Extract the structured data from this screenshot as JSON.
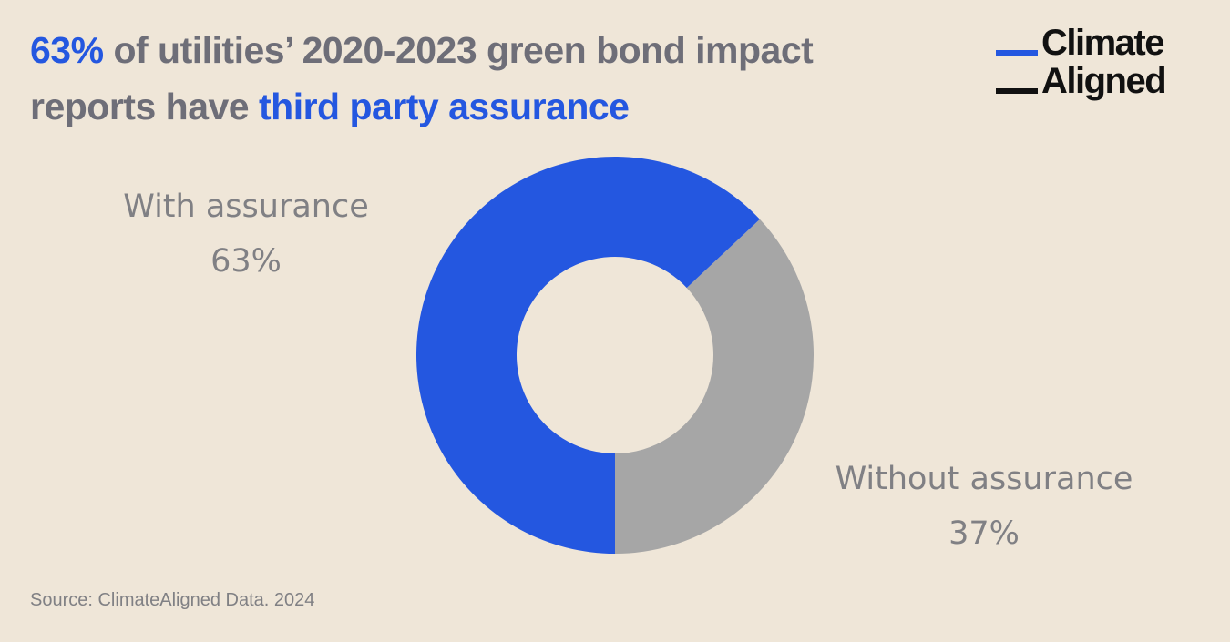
{
  "title": {
    "highlight_1": "63%",
    "middle_1": " of utilities’ 2020-2023 green bond impact",
    "middle_2": "reports have ",
    "highlight_2": "third party assurance"
  },
  "logo": {
    "line_1": "Climate",
    "line_2": "Aligned",
    "colors": {
      "bar_top": "#2457e0",
      "bar_bottom": "#111111"
    }
  },
  "colors": {
    "background": "#efe6d8",
    "accent": "#2457e0",
    "gray_slice": "#a6a6a6",
    "text_gray": "#808084"
  },
  "chart_data": {
    "type": "pie",
    "donut": true,
    "categories": [
      "With assurance",
      "Without assurance"
    ],
    "values": [
      63,
      37
    ],
    "value_labels": [
      "63%",
      "37%"
    ],
    "colors": [
      "#2457e0",
      "#a6a6a6"
    ]
  },
  "source": "Source: ClimateAligned Data. 2024"
}
